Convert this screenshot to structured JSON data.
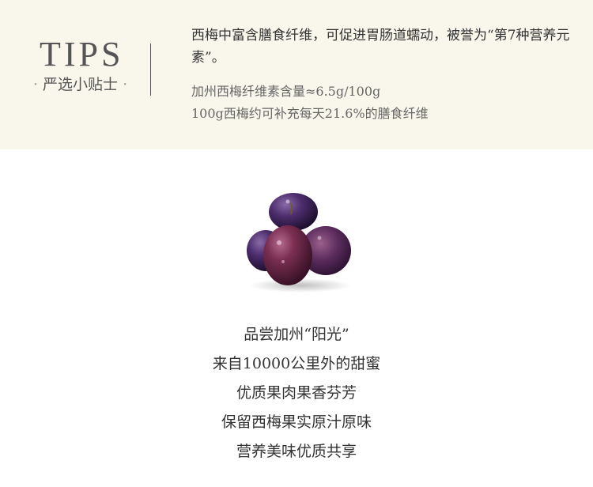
{
  "tips": {
    "title": "TIPS",
    "subtitle": "严选小贴士",
    "main_text": "西梅中富含膳食纤维，可促进胃肠道蠕动，被誉为“第7种营养元素”。",
    "facts": [
      "加州西梅纤维素含量≈6.5g/100g",
      "100g西梅约可补充每天21.6%的膳食纤维"
    ]
  },
  "image": {
    "icon": "plums-photo"
  },
  "slogan": [
    "品尝加州“阳光”",
    "来自10000公里外的甜蜜",
    "优质果肉果香芬芳",
    "保留西梅果实原汁原味",
    "营养美味优质共享"
  ]
}
